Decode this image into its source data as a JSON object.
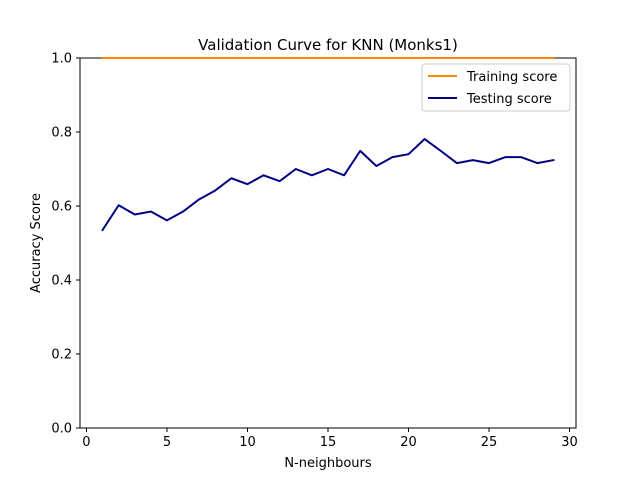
{
  "chart_data": {
    "type": "line",
    "title": "Validation Curve for KNN (Monks1)",
    "xlabel": "N-neighbours",
    "ylabel": "Accuracy Score",
    "xlim": [
      -0.4,
      30.4
    ],
    "ylim": [
      0.0,
      1.0
    ],
    "xticks": [
      0,
      5,
      10,
      15,
      20,
      25,
      30
    ],
    "yticks": [
      0.0,
      0.2,
      0.4,
      0.6,
      0.8,
      1.0
    ],
    "ytick_labels": [
      "0.0",
      "0.2",
      "0.4",
      "0.6",
      "0.8",
      "1.0"
    ],
    "grid": false,
    "legend_position": "top-right",
    "x": [
      1,
      2,
      3,
      4,
      5,
      6,
      7,
      8,
      9,
      10,
      11,
      12,
      13,
      14,
      15,
      16,
      17,
      18,
      19,
      20,
      21,
      22,
      23,
      24,
      25,
      26,
      27,
      28,
      29
    ],
    "series": [
      {
        "name": "Training score",
        "color": "#ff8c00",
        "values": [
          1,
          1,
          1,
          1,
          1,
          1,
          1,
          1,
          1,
          1,
          1,
          1,
          1,
          1,
          1,
          1,
          1,
          1,
          1,
          1,
          1,
          1,
          1,
          1,
          1,
          1,
          1,
          1,
          1
        ]
      },
      {
        "name": "Testing score",
        "color": "#000080",
        "values": [
          0.535,
          0.602,
          0.577,
          0.585,
          0.561,
          0.585,
          0.618,
          0.642,
          0.675,
          0.659,
          0.683,
          0.667,
          0.7,
          0.683,
          0.7,
          0.683,
          0.749,
          0.708,
          0.732,
          0.74,
          0.781,
          0.749,
          0.716,
          0.724,
          0.716,
          0.732,
          0.732,
          0.716,
          0.724
        ]
      }
    ]
  }
}
